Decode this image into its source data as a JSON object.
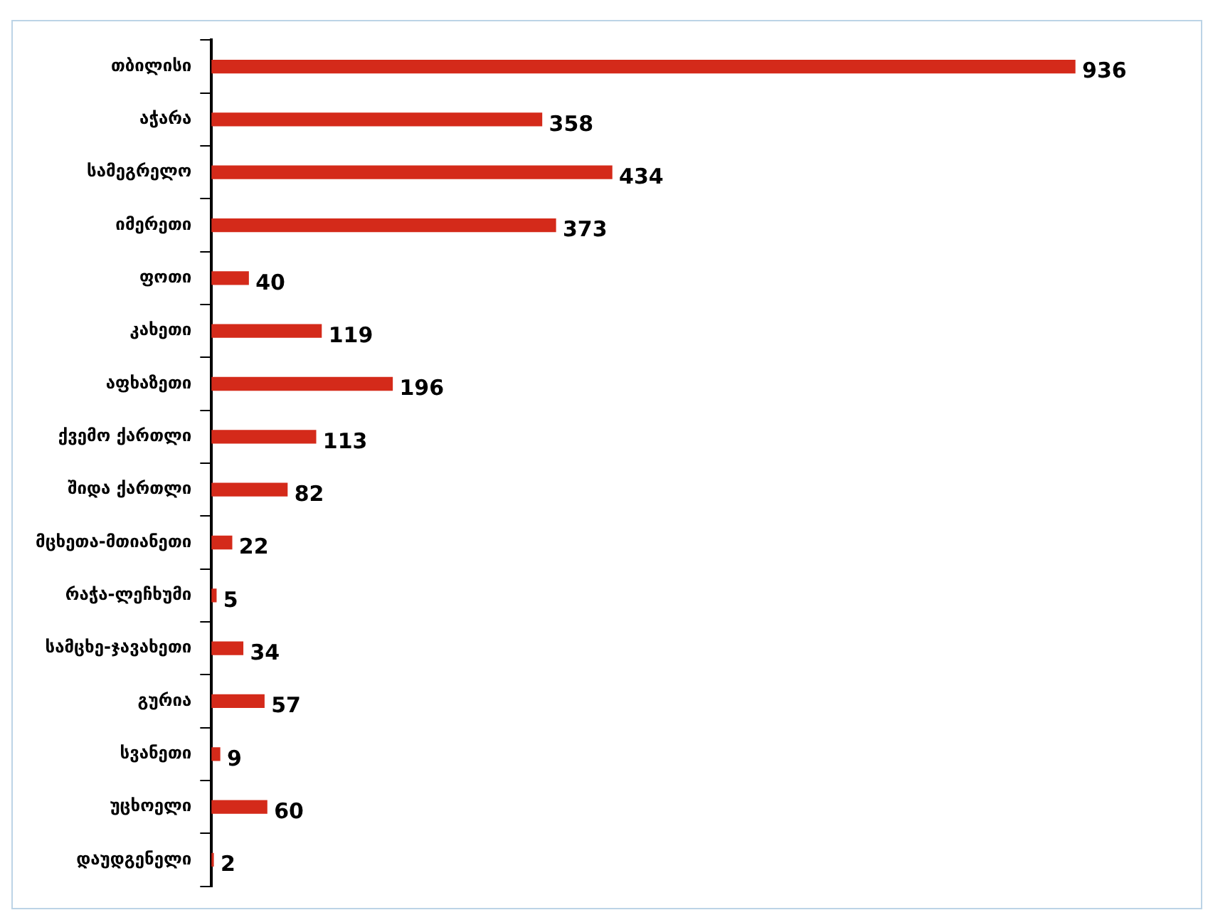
{
  "chart_data": {
    "type": "bar",
    "orientation": "horizontal",
    "categories": [
      "თბილისი",
      "აჭარა",
      "სამეგრელო",
      "იმერეთი",
      "ფოთი",
      "კახეთი",
      "აფხაზეთი",
      "ქვემო ქართლი",
      "შიდა ქართლი",
      "მცხეთა-მთიანეთი",
      "რაჭა-ლეჩხუმი",
      "სამცხე-ჯავახეთი",
      "გურია",
      "სვანეთი",
      "უცხოელი",
      "დაუდგენელი"
    ],
    "values": [
      936,
      358,
      434,
      373,
      40,
      119,
      196,
      113,
      82,
      22,
      5,
      34,
      57,
      9,
      60,
      2
    ],
    "color": "#d42a1a",
    "data_labels": true,
    "legend": false
  }
}
